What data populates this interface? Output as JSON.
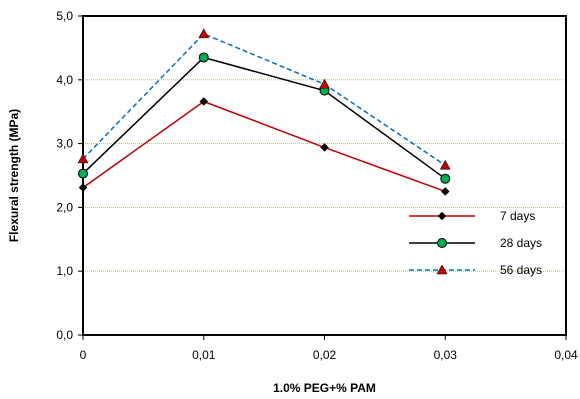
{
  "chart_data": {
    "type": "line",
    "title": "",
    "xlabel": "1.0% PEG+% PAM",
    "ylabel": "Flexural strength (MPa)",
    "xlim": [
      0,
      0.04
    ],
    "ylim": [
      0,
      5
    ],
    "x_ticks": [
      "0",
      "0,01",
      "0,02",
      "0,03",
      "0,04"
    ],
    "y_ticks": [
      "0,0",
      "1,0",
      "2,0",
      "3,0",
      "4,0",
      "5,0"
    ],
    "x_tick_values": [
      0,
      0.01,
      0.02,
      0.03,
      0.04
    ],
    "y_tick_values": [
      0,
      1,
      2,
      3,
      4,
      5
    ],
    "grid": "horizontal",
    "grid_color": "#8dc26f",
    "legend_position": "right",
    "x": [
      0,
      0.01,
      0.02,
      0.03
    ],
    "series": [
      {
        "name": "7 days",
        "values": [
          2.31,
          3.66,
          2.94,
          2.25
        ],
        "line_color": "#c00000",
        "marker": "diamond",
        "marker_color": "#000000",
        "dash": "solid"
      },
      {
        "name": "28 days",
        "values": [
          2.53,
          4.35,
          3.83,
          2.45
        ],
        "line_color": "#000000",
        "marker": "circle",
        "marker_color": "#00b050",
        "dash": "solid"
      },
      {
        "name": "56 days",
        "values": [
          2.76,
          4.72,
          3.93,
          2.66
        ],
        "line_color": "#0070c0",
        "marker": "triangle",
        "marker_color": "#c00000",
        "dash": "dashed"
      }
    ]
  }
}
